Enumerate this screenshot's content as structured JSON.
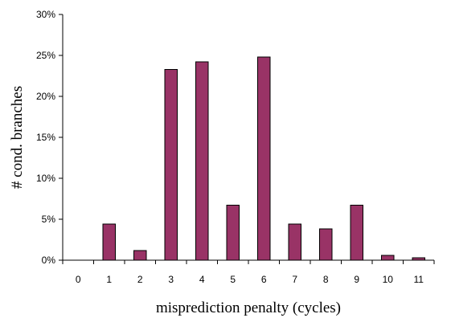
{
  "chart_data": {
    "type": "bar",
    "title": "",
    "xlabel": "misprediction penalty (cycles)",
    "ylabel": "# cond. branches",
    "categories": [
      "0",
      "1",
      "2",
      "3",
      "4",
      "5",
      "6",
      "7",
      "8",
      "9",
      "10",
      "11"
    ],
    "values": [
      0,
      4.4,
      1.2,
      23.3,
      24.2,
      6.7,
      24.8,
      4.4,
      3.8,
      6.7,
      0.6,
      0.3
    ],
    "ylim": [
      0,
      30
    ],
    "yticks": [
      0,
      5,
      10,
      15,
      20,
      25,
      30
    ],
    "ytick_labels": [
      "0%",
      "5%",
      "10%",
      "15%",
      "20%",
      "25%",
      "30%"
    ],
    "grid": false,
    "legend": "none",
    "bar_color": "#993366"
  }
}
